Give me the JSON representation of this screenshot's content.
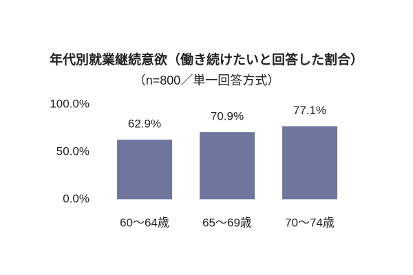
{
  "chart_data": {
    "type": "bar",
    "title": "年代別就業継続意欲（働き続けたいと回答した割合）",
    "subtitle": "（n=800／単一回答方式）",
    "categories": [
      "60～64歳",
      "65～69歳",
      "70～74歳"
    ],
    "values": [
      62.9,
      70.9,
      77.1
    ],
    "value_labels": [
      "62.9%",
      "70.9%",
      "77.1%"
    ],
    "color": "#6e769e",
    "ylim": [
      0,
      100
    ],
    "yticks": [
      {
        "value": 0,
        "label": "0.0%"
      },
      {
        "value": 50,
        "label": "50.0%"
      },
      {
        "value": 100,
        "label": "100.0%"
      }
    ],
    "grid": false
  }
}
